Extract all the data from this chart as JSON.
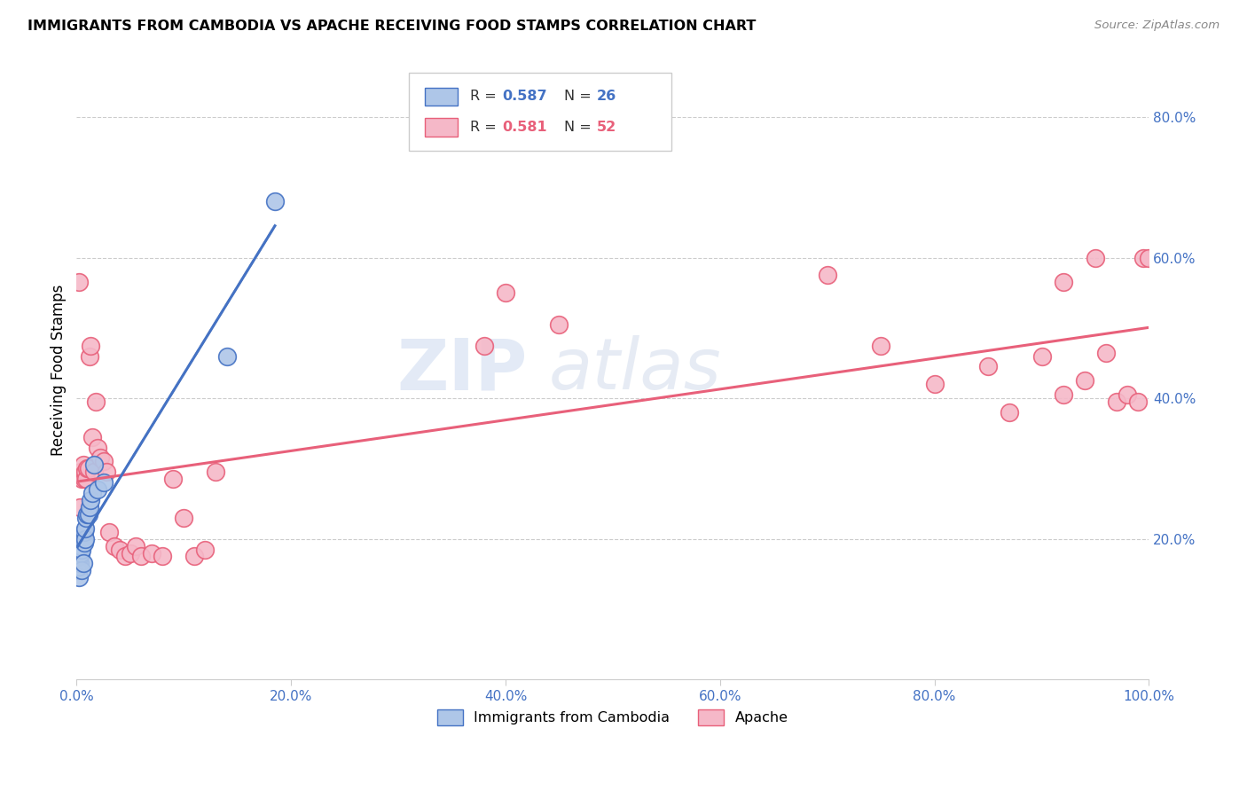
{
  "title": "IMMIGRANTS FROM CAMBODIA VS APACHE RECEIVING FOOD STAMPS CORRELATION CHART",
  "source": "Source: ZipAtlas.com",
  "ylabel": "Receiving Food Stamps",
  "watermark": "ZIPatlas",
  "xlim": [
    0,
    1.0
  ],
  "ylim": [
    0,
    0.88
  ],
  "xticks": [
    0.0,
    0.2,
    0.4,
    0.6,
    0.8,
    1.0
  ],
  "xtick_labels": [
    "0.0%",
    "20.0%",
    "40.0%",
    "60.0%",
    "80.0%",
    "100.0%"
  ],
  "ytick_positions": [
    0.2,
    0.4,
    0.6,
    0.8
  ],
  "ytick_labels": [
    "20.0%",
    "40.0%",
    "60.0%",
    "80.0%"
  ],
  "color_cambodia": "#aec6e8",
  "color_apache": "#f5b8c8",
  "line_color_cambodia": "#4472c4",
  "line_color_apache": "#e8607a",
  "background_color": "#ffffff",
  "cambodia_x": [
    0.001,
    0.002,
    0.002,
    0.003,
    0.003,
    0.004,
    0.004,
    0.005,
    0.005,
    0.006,
    0.006,
    0.007,
    0.007,
    0.008,
    0.008,
    0.009,
    0.01,
    0.011,
    0.012,
    0.013,
    0.015,
    0.016,
    0.02,
    0.025,
    0.14,
    0.185
  ],
  "cambodia_y": [
    0.155,
    0.145,
    0.16,
    0.165,
    0.175,
    0.18,
    0.19,
    0.155,
    0.185,
    0.165,
    0.2,
    0.195,
    0.21,
    0.2,
    0.215,
    0.23,
    0.235,
    0.235,
    0.245,
    0.255,
    0.265,
    0.305,
    0.27,
    0.28,
    0.46,
    0.68
  ],
  "apache_x": [
    0.002,
    0.003,
    0.004,
    0.005,
    0.006,
    0.007,
    0.008,
    0.009,
    0.01,
    0.011,
    0.012,
    0.013,
    0.015,
    0.016,
    0.018,
    0.02,
    0.022,
    0.025,
    0.028,
    0.03,
    0.035,
    0.04,
    0.045,
    0.05,
    0.055,
    0.06,
    0.07,
    0.08,
    0.09,
    0.1,
    0.11,
    0.12,
    0.13,
    0.38,
    0.4,
    0.45,
    0.7,
    0.75,
    0.8,
    0.85,
    0.87,
    0.9,
    0.92,
    0.94,
    0.95,
    0.96,
    0.97,
    0.98,
    0.99,
    0.995,
    1.0,
    0.92
  ],
  "apache_y": [
    0.565,
    0.245,
    0.295,
    0.285,
    0.305,
    0.285,
    0.295,
    0.285,
    0.3,
    0.3,
    0.46,
    0.475,
    0.345,
    0.295,
    0.395,
    0.33,
    0.315,
    0.31,
    0.295,
    0.21,
    0.19,
    0.185,
    0.175,
    0.18,
    0.19,
    0.175,
    0.18,
    0.175,
    0.285,
    0.23,
    0.175,
    0.185,
    0.295,
    0.475,
    0.55,
    0.505,
    0.575,
    0.475,
    0.42,
    0.445,
    0.38,
    0.46,
    0.405,
    0.425,
    0.6,
    0.465,
    0.395,
    0.405,
    0.395,
    0.6,
    0.6,
    0.565
  ]
}
